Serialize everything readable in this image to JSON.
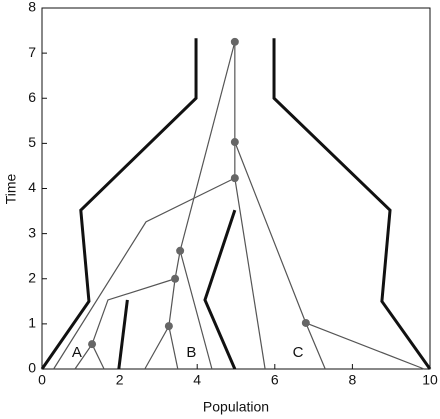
{
  "chart_data": {
    "type": "tree",
    "xlabel": "Population",
    "ylabel": "Time",
    "xlim": [
      0,
      10
    ],
    "ylim": [
      0,
      8
    ],
    "xticks": [
      0,
      2,
      4,
      6,
      8,
      10
    ],
    "yticks": [
      0,
      1,
      2,
      3,
      4,
      5,
      6,
      7,
      8
    ],
    "boundary_color": "#111111",
    "edge_color": "#555555",
    "node_color": "#666666",
    "boundaries": [
      {
        "x": [
          0,
          1.21,
          1.0,
          3.97,
          3.97
        ],
        "y": [
          0,
          1.5,
          3.52,
          6.0,
          7.33
        ]
      },
      {
        "x": [
          10,
          8.76,
          8.97,
          5.98,
          5.98
        ],
        "y": [
          0,
          1.5,
          3.52,
          6.0,
          7.33
        ]
      },
      {
        "x": [
          1.98,
          2.2
        ],
        "y": [
          0,
          1.53
        ]
      },
      {
        "x": [
          4.97,
          4.2,
          4.97
        ],
        "y": [
          0,
          1.53,
          3.52
        ]
      }
    ],
    "edges": [
      {
        "x": [
          4.97,
          4.97,
          4.97
        ],
        "y": [
          7.25,
          5.03,
          4.23
        ]
      },
      {
        "x": [
          4.97,
          3.56
        ],
        "y": [
          7.25,
          2.62
        ]
      },
      {
        "x": [
          4.97,
          2.68,
          0.3
        ],
        "y": [
          4.23,
          3.26,
          0
        ]
      },
      {
        "x": [
          4.97,
          5.75
        ],
        "y": [
          4.23,
          0
        ]
      },
      {
        "x": [
          4.97,
          6.8,
          7.3
        ],
        "y": [
          5.03,
          1.02,
          0
        ]
      },
      {
        "x": [
          6.8,
          9.85
        ],
        "y": [
          1.02,
          0
        ]
      },
      {
        "x": [
          3.56,
          3.43,
          1.7,
          1.29,
          0.85
        ],
        "y": [
          2.62,
          2.0,
          1.53,
          0.55,
          0
        ]
      },
      {
        "x": [
          1.29,
          1.6
        ],
        "y": [
          0.55,
          0
        ]
      },
      {
        "x": [
          3.43,
          3.27,
          2.65
        ],
        "y": [
          2.0,
          0.95,
          0
        ]
      },
      {
        "x": [
          3.27,
          3.5
        ],
        "y": [
          0.95,
          0
        ]
      },
      {
        "x": [
          3.56,
          4.38
        ],
        "y": [
          2.62,
          0
        ]
      }
    ],
    "nodes": {
      "x": [
        4.97,
        4.97,
        4.97,
        3.56,
        3.43,
        3.27,
        1.29,
        6.8
      ],
      "y": [
        7.25,
        5.03,
        4.23,
        2.62,
        2.0,
        0.95,
        0.55,
        1.02
      ]
    },
    "annotations": [
      {
        "text": "A",
        "x": 0.9,
        "y": 0.35
      },
      {
        "text": "B",
        "x": 3.85,
        "y": 0.35
      },
      {
        "text": "C",
        "x": 6.6,
        "y": 0.35
      }
    ]
  }
}
